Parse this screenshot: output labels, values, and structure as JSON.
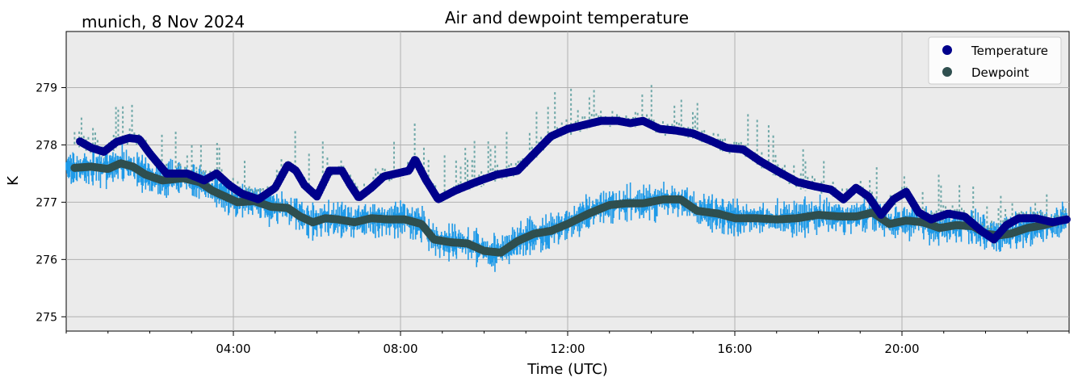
{
  "location_label": "munich, 8 Nov 2024",
  "chart_data": {
    "type": "scatter",
    "title": "Air and dewpoint temperature",
    "xlabel": "Time (UTC)",
    "ylabel": "K",
    "x_unit": "hours UTC",
    "xlim": [
      0,
      24
    ],
    "ylim": [
      274.75,
      279.98
    ],
    "x_tick_values": [
      4,
      8,
      12,
      16,
      20
    ],
    "x_ticks": [
      "04:00",
      "08:00",
      "12:00",
      "16:00",
      "20:00"
    ],
    "y_ticks": [
      275,
      276,
      277,
      278,
      279
    ],
    "grid": true,
    "background": "#ebebeb",
    "legend_position": "upper-right",
    "series": [
      {
        "name": "Temperature",
        "color": "#00008b",
        "raw_color": "#6fa8a8",
        "x": [
          0.33,
          0.6,
          0.9,
          1.2,
          1.5,
          1.75,
          2.0,
          2.4,
          2.9,
          3.3,
          3.6,
          3.9,
          4.2,
          4.6,
          5.0,
          5.3,
          5.5,
          5.7,
          6.0,
          6.3,
          6.6,
          6.8,
          7.0,
          7.3,
          7.6,
          7.9,
          8.2,
          8.35,
          8.6,
          8.9,
          9.3,
          9.8,
          10.3,
          10.8,
          11.2,
          11.6,
          12.0,
          12.4,
          12.8,
          13.2,
          13.5,
          13.8,
          14.2,
          14.6,
          15.0,
          15.4,
          15.8,
          16.2,
          16.6,
          17.0,
          17.5,
          17.9,
          18.3,
          18.6,
          18.9,
          19.2,
          19.5,
          19.8,
          20.1,
          20.4,
          20.7,
          21.1,
          21.5,
          21.9,
          22.2,
          22.5,
          22.8,
          23.2,
          23.6,
          23.95
        ],
        "y": [
          278.06,
          277.95,
          277.88,
          278.05,
          278.12,
          278.1,
          277.85,
          277.5,
          277.5,
          277.38,
          277.5,
          277.3,
          277.15,
          277.05,
          277.25,
          277.65,
          277.55,
          277.3,
          277.1,
          277.55,
          277.55,
          277.3,
          277.08,
          277.25,
          277.45,
          277.5,
          277.55,
          277.75,
          277.4,
          277.05,
          277.2,
          277.35,
          277.48,
          277.55,
          277.85,
          278.15,
          278.28,
          278.35,
          278.42,
          278.42,
          278.38,
          278.42,
          278.28,
          278.25,
          278.2,
          278.08,
          277.95,
          277.92,
          277.72,
          277.55,
          277.35,
          277.28,
          277.22,
          277.05,
          277.25,
          277.1,
          276.78,
          277.05,
          277.18,
          276.82,
          276.7,
          276.8,
          276.75,
          276.5,
          276.35,
          276.6,
          276.72,
          276.72,
          276.65,
          276.7
        ]
      },
      {
        "name": "Dewpoint",
        "color": "#2f4f4f",
        "raw_color": "#1f9ae8",
        "x": [
          0.2,
          0.6,
          1.0,
          1.3,
          1.6,
          1.9,
          2.3,
          2.8,
          3.2,
          3.5,
          3.8,
          4.1,
          4.5,
          4.9,
          5.3,
          5.6,
          5.9,
          6.2,
          6.5,
          6.9,
          7.3,
          7.7,
          8.1,
          8.5,
          8.8,
          9.2,
          9.6,
          10.0,
          10.4,
          10.8,
          11.2,
          11.6,
          12.0,
          12.5,
          13.0,
          13.4,
          13.8,
          14.3,
          14.7,
          15.1,
          15.6,
          16.0,
          16.5,
          17.0,
          17.5,
          18.0,
          18.5,
          18.9,
          19.3,
          19.7,
          20.1,
          20.5,
          20.9,
          21.3,
          21.7,
          22.0,
          22.3,
          22.6,
          23.0,
          23.4,
          23.8
        ],
        "y": [
          277.6,
          277.62,
          277.58,
          277.68,
          277.62,
          277.48,
          277.38,
          277.42,
          277.35,
          277.2,
          277.1,
          277.0,
          277.02,
          276.92,
          276.9,
          276.75,
          276.65,
          276.72,
          276.7,
          276.65,
          276.72,
          276.7,
          276.7,
          276.62,
          276.35,
          276.3,
          276.28,
          276.15,
          276.12,
          276.32,
          276.45,
          276.5,
          276.62,
          276.8,
          276.95,
          276.98,
          276.98,
          277.05,
          277.05,
          276.85,
          276.8,
          276.72,
          276.72,
          276.7,
          276.72,
          276.78,
          276.75,
          276.75,
          276.82,
          276.62,
          276.68,
          276.65,
          276.55,
          276.6,
          276.58,
          276.45,
          276.42,
          276.45,
          276.55,
          276.6,
          276.68
        ]
      }
    ]
  }
}
